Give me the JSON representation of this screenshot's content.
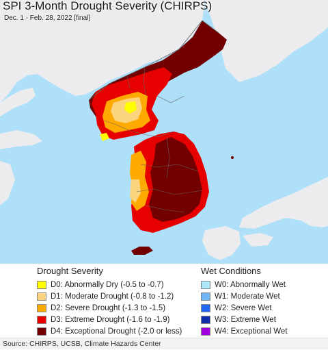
{
  "title": "SPI 3-Month Drought Severity (CHIRPS)",
  "subtitle": "Dec. 1 - Feb. 28, 2022 [final]",
  "map": {
    "colors": {
      "sea": "#aee0fa",
      "land": "#ececee",
      "border": "#666666",
      "no_drought": "#fff3c2"
    }
  },
  "drought_legend": {
    "heading": "Drought Severity",
    "items": [
      {
        "label": "D0: Abnormally Dry (-0.5 to -0.7)",
        "color": "#ffff00"
      },
      {
        "label": "D1: Moderate Drought (-0.8 to -1.2)",
        "color": "#fcd37f"
      },
      {
        "label": "D2: Severe Drought (-1.3 to -1.5)",
        "color": "#ffaa00"
      },
      {
        "label": "D3: Extreme Drought (-1.6 to -1.9)",
        "color": "#e60000"
      },
      {
        "label": "D4: Exceptional Drought (-2.0 or less)",
        "color": "#730000"
      }
    ]
  },
  "wet_legend": {
    "heading": "Wet Conditions",
    "items": [
      {
        "label": "W0: Abnormally Wet",
        "color": "#aae6fa"
      },
      {
        "label": "W1: Moderate Wet",
        "color": "#6fb4f5"
      },
      {
        "label": "W2: Severe Wet",
        "color": "#2268f0"
      },
      {
        "label": "W3: Extreme Wet",
        "color": "#0c2ca8"
      },
      {
        "label": "W4: Exceptional Wet",
        "color": "#a000dc"
      }
    ]
  },
  "source": "Source: CHIRPS, UCSB, Climate Hazards Center"
}
